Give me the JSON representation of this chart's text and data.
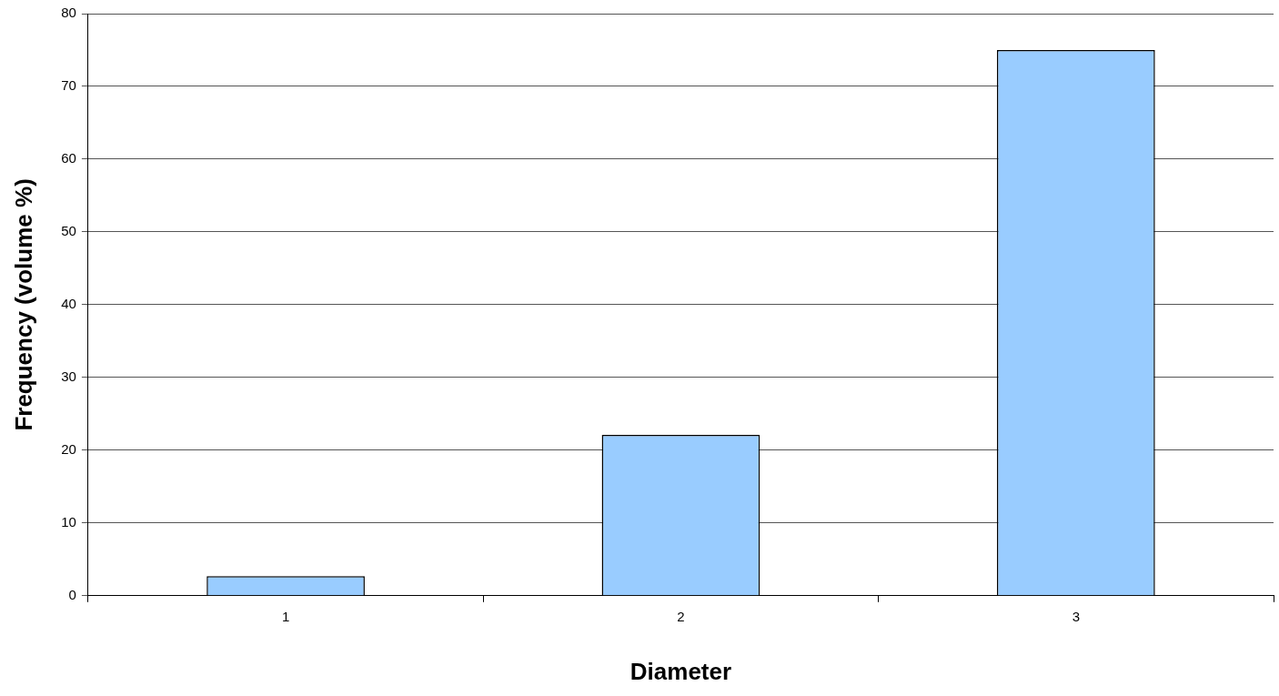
{
  "chart_data": {
    "type": "bar",
    "xlabel": "Diameter",
    "ylabel": "Frequency (volume %)",
    "categories": [
      "1",
      "2",
      "3"
    ],
    "values": [
      2.7,
      22.1,
      75.0
    ],
    "color": "#99ccff",
    "ylim": [
      0,
      80
    ],
    "yticks": [
      0,
      10,
      20,
      30,
      40,
      50,
      60,
      70,
      80
    ],
    "grid": "y",
    "legend": false
  }
}
